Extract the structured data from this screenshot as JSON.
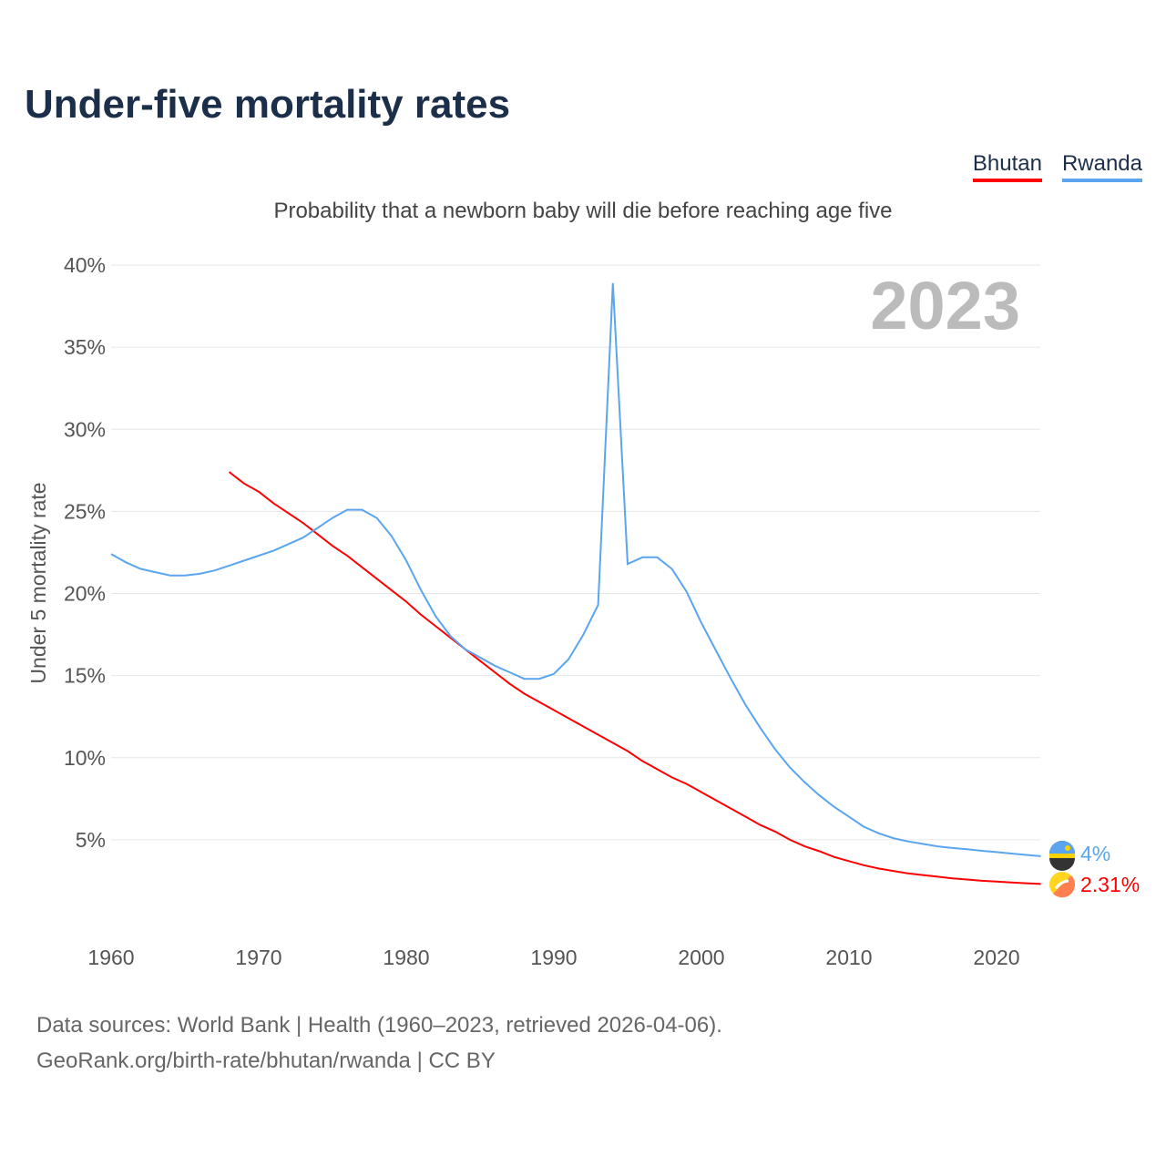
{
  "title": "Under-five mortality rates",
  "subtitle": "Probability that a newborn baby will die before reaching age five",
  "year_label": "2023",
  "source_line1": "Data sources: World Bank | Health (1960–2023, retrieved 2026-04-06).",
  "source_line2": "GeoRank.org/birth-rate/bhutan/rwanda | CC BY",
  "chart_data": {
    "type": "line",
    "title": "Under-five mortality rates",
    "ylabel": "Under 5 mortality rate",
    "xlabel": "",
    "xlim": [
      1960,
      2023
    ],
    "ylim": [
      0,
      40
    ],
    "grid": true,
    "legend_position": "top-right",
    "x_ticks": [
      1960,
      1970,
      1980,
      1990,
      2000,
      2010,
      2020
    ],
    "y_ticks": [
      5,
      10,
      15,
      20,
      25,
      30,
      35,
      40
    ],
    "y_tick_labels": [
      "5%",
      "10%",
      "15%",
      "20%",
      "25%",
      "30%",
      "35%",
      "40%"
    ],
    "series": [
      {
        "name": "Bhutan",
        "color": "#ff0000",
        "end_label": "2.31%",
        "start_year": 1968,
        "values": [
          27.4,
          26.7,
          26.2,
          25.5,
          24.9,
          24.3,
          23.6,
          22.9,
          22.3,
          21.6,
          20.9,
          20.2,
          19.5,
          18.7,
          18.0,
          17.3,
          16.6,
          15.9,
          15.2,
          14.5,
          13.9,
          13.4,
          12.9,
          12.4,
          11.9,
          11.4,
          10.9,
          10.4,
          9.8,
          9.3,
          8.8,
          8.4,
          7.9,
          7.4,
          6.9,
          6.4,
          5.9,
          5.5,
          5.0,
          4.6,
          4.3,
          3.95,
          3.7,
          3.45,
          3.25,
          3.1,
          2.95,
          2.85,
          2.75,
          2.65,
          2.58,
          2.5,
          2.45,
          2.4,
          2.35,
          2.31
        ]
      },
      {
        "name": "Rwanda",
        "color": "#5aa5ee",
        "end_label": "4%",
        "start_year": 1960,
        "values": [
          22.4,
          21.9,
          21.5,
          21.3,
          21.1,
          21.1,
          21.2,
          21.4,
          21.7,
          22.0,
          22.3,
          22.6,
          23.0,
          23.4,
          24.0,
          24.6,
          25.1,
          25.1,
          24.6,
          23.5,
          22.0,
          20.2,
          18.6,
          17.4,
          16.6,
          16.1,
          15.6,
          15.2,
          14.8,
          14.8,
          15.1,
          16.0,
          17.5,
          19.3,
          38.9,
          21.8,
          22.2,
          22.2,
          21.5,
          20.1,
          18.2,
          16.5,
          14.8,
          13.2,
          11.8,
          10.5,
          9.4,
          8.5,
          7.7,
          7.0,
          6.4,
          5.8,
          5.4,
          5.1,
          4.9,
          4.75,
          4.6,
          4.5,
          4.42,
          4.33,
          4.25,
          4.16,
          4.08,
          4.0
        ]
      }
    ]
  }
}
